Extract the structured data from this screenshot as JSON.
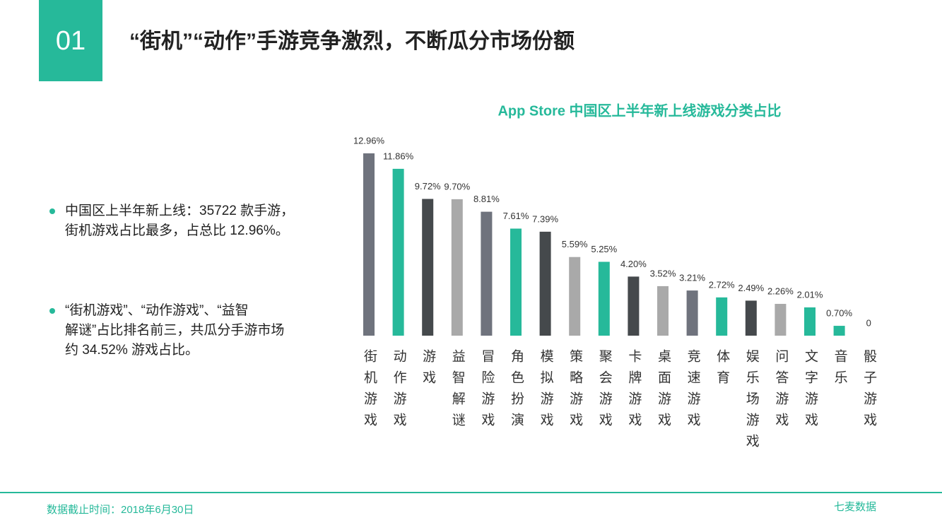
{
  "header": {
    "number": "01",
    "title": "“街机”“动作”手游竞争激烈，不断瓜分市场份额"
  },
  "bullets": [
    {
      "lines": [
        "中国区上半年新上线：35722 款手游，",
        "街机游戏占比最多，占总比 12.96%。"
      ]
    },
    {
      "lines": [
        "“街机游戏”、“动作游戏”、“益智",
        "解谜”占比排名前三，共瓜分手游市场",
        "约 34.52% 游戏占比。"
      ]
    }
  ],
  "footer": {
    "note": "数据截止时间：2018年6月30日",
    "logo": "七麦数据"
  },
  "chart_data": {
    "type": "bar",
    "title": "App Store 中国区上半年新上线游戏分类占比",
    "categories": [
      "街机游戏",
      "动作游戏",
      "游戏",
      "益智解谜",
      "冒险游戏",
      "角色扮演",
      "模拟游戏",
      "策略游戏",
      "聚会游戏",
      "卡牌游戏",
      "桌面游戏",
      "竞速游戏",
      "体育",
      "娱乐场游戏",
      "问答游戏",
      "文字游戏",
      "音乐",
      "骰子游戏"
    ],
    "values": [
      12.96,
      11.86,
      9.72,
      9.7,
      8.81,
      7.61,
      7.39,
      5.59,
      5.25,
      4.2,
      3.52,
      3.21,
      2.72,
      2.49,
      2.26,
      2.01,
      0.7,
      0
    ],
    "value_labels": [
      "12.96%",
      "11.86%",
      "9.72%",
      "9.70%",
      "8.81%",
      "7.61%",
      "7.39%",
      "5.59%",
      "5.25%",
      "4.20%",
      "3.52%",
      "3.21%",
      "2.72%",
      "2.49%",
      "2.26%",
      "2.01%",
      "0.70%",
      "0"
    ],
    "colors": [
      "#6f737d",
      "#26b99a",
      "#45494c",
      "#a9a9a9",
      "#6f737d",
      "#26b99a",
      "#45494c",
      "#a9a9a9",
      "#26b99a",
      "#45494c",
      "#a9a9a9",
      "#6f737d",
      "#26b99a",
      "#45494c",
      "#a9a9a9",
      "#26b99a",
      "#26b99a",
      "#a9a9a9"
    ]
  }
}
